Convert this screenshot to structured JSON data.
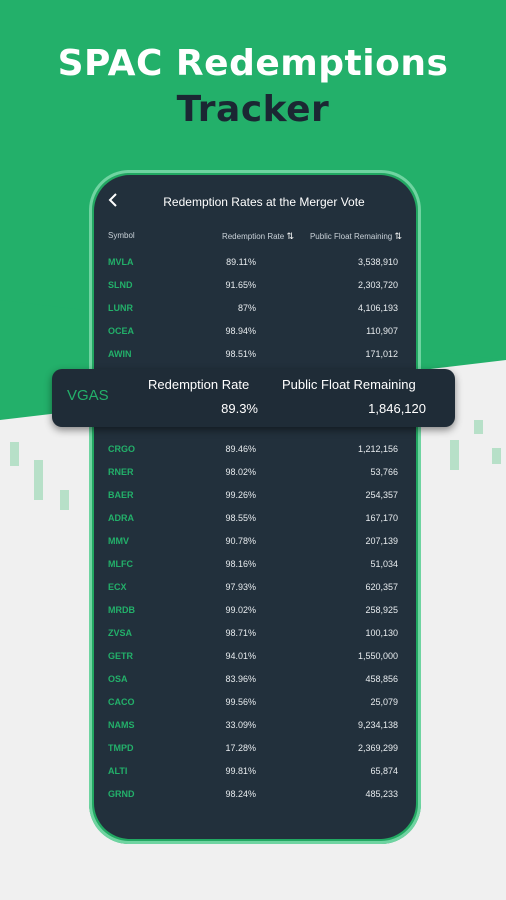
{
  "headline": {
    "line1": "SPAC Redemptions",
    "line2": "Tracker"
  },
  "colors": {
    "brand_green": "#23b06a",
    "phone_bg": "#22303c",
    "dark_text": "#1b2733"
  },
  "app": {
    "title": "Redemption Rates at the Merger Vote",
    "back_icon": "chevron-left-icon",
    "columns": {
      "symbol": "Symbol",
      "rate": "Redemption Rate",
      "float": "Public Float Remaining",
      "sort_icon": "⇅"
    }
  },
  "rows": [
    {
      "symbol": "MVLA",
      "rate": "89.11%",
      "float": "3,538,910"
    },
    {
      "symbol": "SLND",
      "rate": "91.65%",
      "float": "2,303,720"
    },
    {
      "symbol": "LUNR",
      "rate": "87%",
      "float": "4,106,193"
    },
    {
      "symbol": "OCEA",
      "rate": "98.94%",
      "float": "110,907"
    },
    {
      "symbol": "AWIN",
      "rate": "98.51%",
      "float": "171,012"
    },
    {
      "symbol": "CRGO",
      "rate": "89.46%",
      "float": "1,212,156"
    },
    {
      "symbol": "RNER",
      "rate": "98.02%",
      "float": "53,766"
    },
    {
      "symbol": "BAER",
      "rate": "99.26%",
      "float": "254,357"
    },
    {
      "symbol": "ADRA",
      "rate": "98.55%",
      "float": "167,170"
    },
    {
      "symbol": "MMV",
      "rate": "90.78%",
      "float": "207,139"
    },
    {
      "symbol": "MLFC",
      "rate": "98.16%",
      "float": "51,034"
    },
    {
      "symbol": "ECX",
      "rate": "97.93%",
      "float": "620,357"
    },
    {
      "symbol": "MRDB",
      "rate": "99.02%",
      "float": "258,925"
    },
    {
      "symbol": "ZVSA",
      "rate": "98.71%",
      "float": "100,130"
    },
    {
      "symbol": "GETR",
      "rate": "94.01%",
      "float": "1,550,000"
    },
    {
      "symbol": "OSA",
      "rate": "83.96%",
      "float": "458,856"
    },
    {
      "symbol": "CACO",
      "rate": "99.56%",
      "float": "25,079"
    },
    {
      "symbol": "NAMS",
      "rate": "33.09%",
      "float": "9,234,138"
    },
    {
      "symbol": "TMPD",
      "rate": "17.28%",
      "float": "2,369,299"
    },
    {
      "symbol": "ALTI",
      "rate": "99.81%",
      "float": "65,874"
    },
    {
      "symbol": "GRND",
      "rate": "98.24%",
      "float": "485,233"
    }
  ],
  "highlight": {
    "symbol": "VGAS",
    "rate_label": "Redemption Rate",
    "rate_value": "89.3%",
    "float_label": "Public Float Remaining",
    "float_value": "1,846,120"
  }
}
